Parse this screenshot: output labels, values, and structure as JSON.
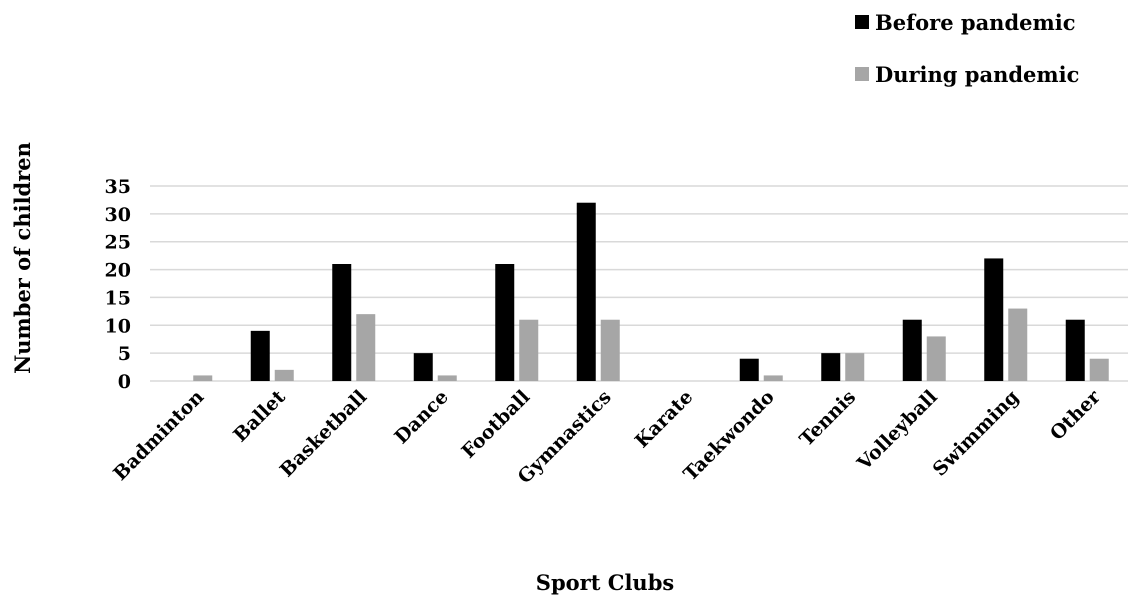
{
  "chart_data": {
    "type": "bar",
    "categories": [
      "Badminton",
      "Ballet",
      "Basketball",
      "Dance",
      "Football",
      "Gymnastics",
      "Karate",
      "Taekwondo",
      "Tennis",
      "Volleyball",
      "Swimming",
      "Other"
    ],
    "series": [
      {
        "name": "Before pandemic",
        "color": "#000000",
        "values": [
          0,
          9,
          21,
          5,
          21,
          32,
          0,
          4,
          5,
          11,
          22,
          11
        ]
      },
      {
        "name": "During pandemic",
        "color": "#a6a6a6",
        "values": [
          1,
          2,
          12,
          1,
          11,
          11,
          0,
          1,
          5,
          8,
          13,
          4
        ]
      }
    ],
    "xlabel": "Sport Clubs",
    "ylabel": "Number of children",
    "ylim": [
      0,
      35
    ],
    "yticks": [
      0,
      5,
      10,
      15,
      20,
      25,
      30,
      35
    ],
    "grid": true,
    "legend_position": "top-right"
  }
}
